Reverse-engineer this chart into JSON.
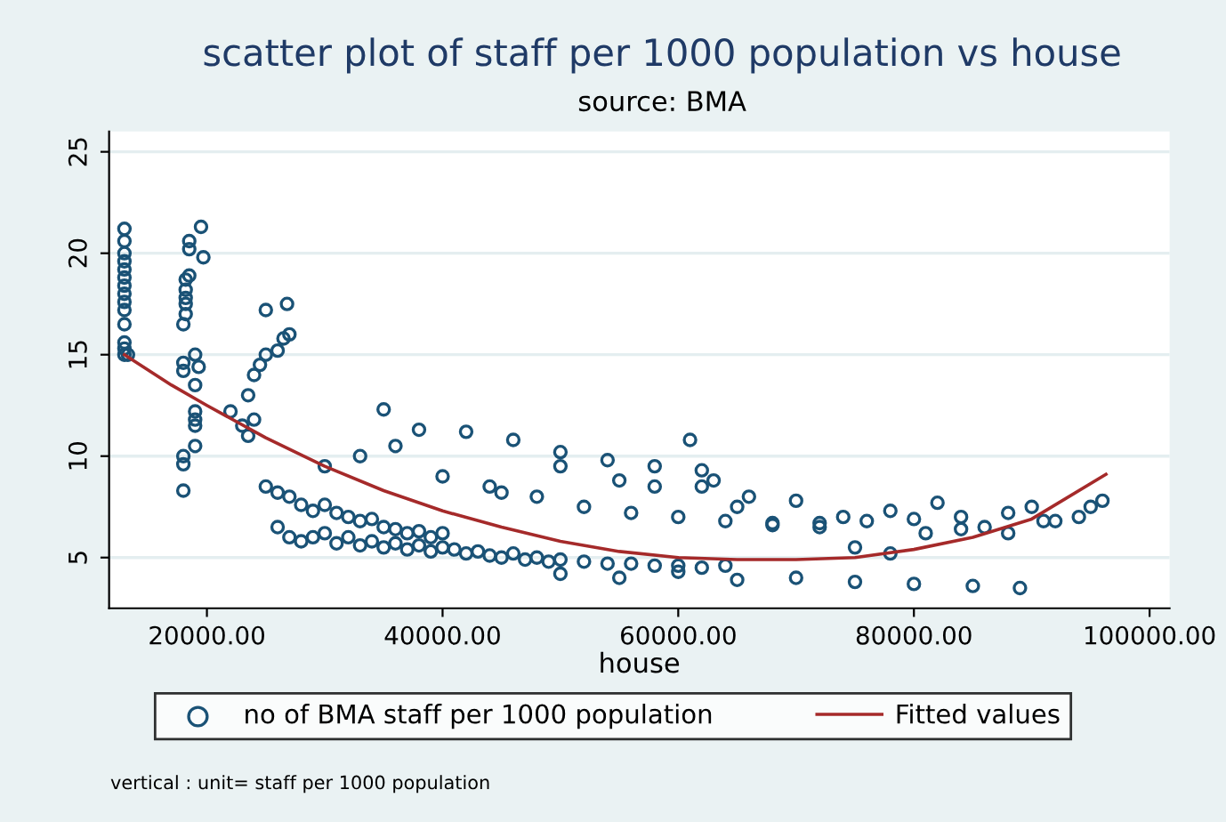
{
  "chart_data": {
    "type": "scatter",
    "title": "scatter plot of staff per 1000 population vs house",
    "subtitle": "source: BMA",
    "xlabel": "house",
    "annotations": [
      "vertical : unit= staff per 1000 population"
    ],
    "xlim": [
      11700,
      101700
    ],
    "ylim": [
      2.5,
      26
    ],
    "xticks": [
      {
        "value": 20000,
        "label": "20000.00"
      },
      {
        "value": 40000,
        "label": "40000.00"
      },
      {
        "value": 60000,
        "label": "60000.00"
      },
      {
        "value": 80000,
        "label": "80000.00"
      },
      {
        "value": 100000,
        "label": "100000.00"
      }
    ],
    "yticks": [
      5,
      10,
      15,
      20,
      25
    ],
    "grid": "y",
    "legend": "bottom",
    "series": [
      {
        "name": "no of BMA staff per 1000 population",
        "marker": "circle",
        "color": "#1a5276",
        "x": [
          13000,
          13000,
          13000,
          13000,
          13000,
          13000,
          13000,
          13000,
          13000,
          13000,
          13000,
          13000,
          13000,
          13000,
          13300,
          18000,
          18000,
          18000,
          18000,
          18000,
          18000,
          18200,
          18200,
          18200,
          18200,
          18200,
          18500,
          18500,
          18500,
          19000,
          19000,
          19000,
          19300,
          19500,
          19700,
          19000,
          19000,
          19000,
          22000,
          23000,
          23500,
          24000,
          24500,
          25000,
          26000,
          26500,
          27000,
          26800,
          25000,
          24000,
          23500,
          25000,
          26000,
          27000,
          28000,
          29000,
          30000,
          31000,
          32000,
          33000,
          34000,
          35000,
          36000,
          37000,
          38000,
          39000,
          40000,
          26000,
          27000,
          28000,
          29000,
          30000,
          31000,
          32000,
          33000,
          34000,
          35000,
          36000,
          37000,
          38000,
          39000,
          40000,
          41000,
          42000,
          43000,
          44000,
          45000,
          46000,
          47000,
          48000,
          49000,
          50000,
          52000,
          54000,
          56000,
          58000,
          60000,
          62000,
          64000,
          30000,
          33000,
          36000,
          40000,
          44000,
          48000,
          52000,
          56000,
          60000,
          64000,
          68000,
          72000,
          76000,
          80000,
          84000,
          88000,
          92000,
          95000,
          42000,
          46000,
          50000,
          54000,
          58000,
          62000,
          66000,
          70000,
          74000,
          78000,
          82000,
          86000,
          90000,
          94000,
          50000,
          55000,
          60000,
          65000,
          70000,
          75000,
          80000,
          85000,
          89000,
          61000,
          63000,
          65000,
          68000,
          72000,
          75000,
          78000,
          81000,
          84000,
          88000,
          91000,
          96000,
          35000,
          38000,
          45000,
          50000,
          55000,
          58000,
          62000
        ],
        "values": [
          15,
          15.3,
          15.6,
          16.5,
          17.2,
          17.6,
          18,
          18.4,
          18.8,
          19.2,
          19.6,
          20,
          20.6,
          21.2,
          15.0,
          8.3,
          9.6,
          10,
          14.2,
          14.6,
          16.5,
          17,
          17.5,
          17.8,
          18.2,
          18.7,
          18.9,
          20.2,
          20.6,
          10.5,
          11.5,
          12.2,
          14.4,
          21.3,
          19.8,
          13.5,
          15,
          11.8,
          12.2,
          11.5,
          13,
          14,
          14.5,
          15,
          15.2,
          15.8,
          16,
          17.5,
          17.2,
          11.8,
          11,
          8.5,
          8.2,
          8,
          7.6,
          7.3,
          7.6,
          7.2,
          7,
          6.8,
          6.9,
          6.5,
          6.4,
          6.2,
          6.3,
          6.0,
          6.2,
          6.5,
          6,
          5.8,
          6,
          6.2,
          5.7,
          6,
          5.6,
          5.8,
          5.5,
          5.7,
          5.4,
          5.6,
          5.3,
          5.5,
          5.4,
          5.2,
          5.3,
          5.1,
          5,
          5.2,
          4.9,
          5,
          4.8,
          4.9,
          4.8,
          4.7,
          4.7,
          4.6,
          4.6,
          4.5,
          4.6,
          9.5,
          10,
          10.5,
          9,
          8.5,
          8,
          7.5,
          7.2,
          7,
          6.8,
          6.6,
          6.7,
          6.8,
          6.9,
          7,
          7.2,
          6.8,
          7.5,
          11.2,
          10.8,
          10.2,
          9.8,
          9.5,
          8.5,
          8,
          7.8,
          7,
          7.3,
          7.7,
          6.5,
          7.5,
          7,
          4.2,
          4.0,
          4.3,
          3.9,
          4.0,
          3.8,
          3.7,
          3.6,
          3.5,
          10.8,
          8.8,
          7.5,
          6.7,
          6.5,
          5.5,
          5.2,
          6.2,
          6.4,
          6.2,
          6.8,
          7.8,
          12.3,
          11.3,
          8.2,
          9.5,
          8.8,
          8.5,
          9.3
        ]
      },
      {
        "name": "Fitted values",
        "type": "line",
        "marker": "none",
        "line_style": "solid",
        "color": "#a52a2a",
        "x": [
          13000,
          17000,
          20000,
          25000,
          30000,
          35000,
          40000,
          45000,
          50000,
          55000,
          60000,
          65000,
          70000,
          75000,
          80000,
          85000,
          90000,
          96300
        ],
        "values": [
          15,
          13.5,
          12.5,
          10.9,
          9.5,
          8.3,
          7.3,
          6.5,
          5.8,
          5.3,
          5.0,
          4.9,
          4.9,
          5.0,
          5.4,
          6.0,
          6.9,
          9.1
        ]
      }
    ]
  }
}
